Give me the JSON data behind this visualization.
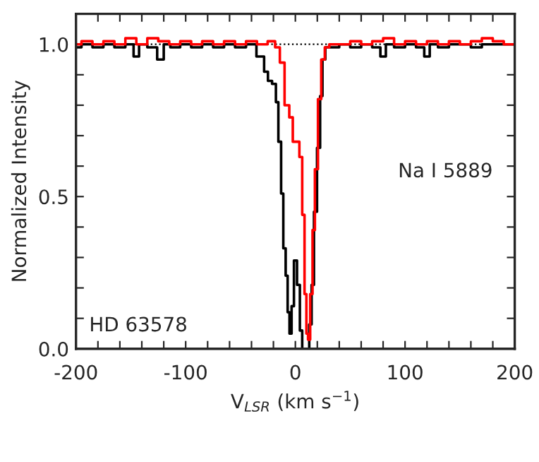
{
  "chart_data": {
    "type": "step",
    "xlabel": "V$_{LSR}$ (km s$^{−1}$)",
    "ylabel": "Normalized Intensity",
    "annotations": [
      "Na I 5889",
      "HD 63578"
    ],
    "series": [
      {
        "color": "#000000",
        "x": [
          -200,
          -190,
          -180,
          -170,
          -160,
          -150,
          -145,
          -140,
          -130,
          -122,
          -118,
          -110,
          -100,
          -90,
          -80,
          -70,
          -60,
          -50,
          -40,
          -31,
          -26,
          -24,
          -18.5,
          -17,
          -14,
          -12,
          -10,
          -7.7,
          -6.4,
          -4.3,
          -2.6,
          0,
          3,
          5.2,
          7.3,
          11.6,
          13.7,
          15.9,
          18,
          21.5,
          23.6,
          25.8,
          28.8,
          35,
          45,
          55,
          65,
          75,
          80,
          85,
          95,
          105,
          115,
          120,
          125,
          135,
          145,
          155,
          165,
          175,
          185,
          195,
          200
        ],
        "values": [
          0.99,
          1.0,
          0.99,
          1.0,
          0.99,
          1.0,
          0.96,
          1.0,
          0.99,
          0.95,
          1.0,
          0.99,
          1.0,
          0.99,
          1.0,
          0.99,
          1.0,
          0.99,
          1.0,
          0.96,
          0.91,
          0.88,
          0.87,
          0.81,
          0.68,
          0.51,
          0.33,
          0.24,
          0.12,
          0.05,
          0.14,
          0.29,
          0.21,
          0.06,
          0.0,
          0.0,
          0.08,
          0.21,
          0.45,
          0.66,
          0.83,
          0.95,
          0.99,
          0.99,
          1.0,
          0.99,
          1.0,
          0.99,
          0.96,
          1.0,
          0.99,
          1.0,
          0.99,
          0.96,
          1.0,
          0.99,
          1.0,
          1.0,
          0.99,
          1.0,
          1.0,
          1.0,
          1.0
        ]
      },
      {
        "color": "#ff0000",
        "x": [
          -200,
          -190,
          -180,
          -170,
          -160,
          -150,
          -140,
          -130,
          -120,
          -110,
          -100,
          -90,
          -80,
          -70,
          -60,
          -50,
          -40,
          -30,
          -20.6,
          -16.3,
          -12,
          -7.7,
          -3.4,
          -1.3,
          2.1,
          5.2,
          7.3,
          9.4,
          10.7,
          12.4,
          14.6,
          16.7,
          18.9,
          22.3,
          24.9,
          28.8,
          33,
          45,
          55,
          65,
          75,
          85,
          95,
          105,
          115,
          125,
          135,
          145,
          155,
          165,
          175,
          185,
          195,
          200
        ],
        "values": [
          1.0,
          1.01,
          1.0,
          1.01,
          1.0,
          1.02,
          1.0,
          1.02,
          1.01,
          1.0,
          1.01,
          1.0,
          1.01,
          1.0,
          1.01,
          1.0,
          1.01,
          1.0,
          1.01,
          0.99,
          0.94,
          0.8,
          0.76,
          0.68,
          0.68,
          0.63,
          0.44,
          0.18,
          0.05,
          0.03,
          0.18,
          0.39,
          0.59,
          0.82,
          0.95,
          0.99,
          1.0,
          1.0,
          1.01,
          1.0,
          1.01,
          1.02,
          1.0,
          1.01,
          1.0,
          1.01,
          1.0,
          1.01,
          1.0,
          1.01,
          1.02,
          1.01,
          1.0,
          1.0
        ]
      }
    ],
    "ref_lines": [
      {
        "axis": "y",
        "value": 1.0,
        "color": "#000000",
        "line_style": "dotted"
      }
    ],
    "xlim": [
      -200,
      200
    ],
    "ylim": [
      0,
      1.1
    ],
    "xticks": [
      -200,
      {
        "value": -180,
        "label": null
      },
      {
        "value": -160,
        "label": null
      },
      {
        "value": -140,
        "label": null
      },
      {
        "value": -120,
        "label": null
      },
      -100,
      {
        "value": -80,
        "label": null
      },
      {
        "value": -60,
        "label": null
      },
      {
        "value": -40,
        "label": null
      },
      {
        "value": -20,
        "label": null
      },
      0,
      {
        "value": 20,
        "label": null
      },
      {
        "value": 40,
        "label": null
      },
      {
        "value": 60,
        "label": null
      },
      {
        "value": 80,
        "label": null
      },
      100,
      {
        "value": 120,
        "label": null
      },
      {
        "value": 140,
        "label": null
      },
      {
        "value": 160,
        "label": null
      },
      {
        "value": 180,
        "label": null
      },
      200
    ],
    "yticks": [
      {
        "value": 0,
        "label": "0.0"
      },
      {
        "value": 0.1,
        "label": null
      },
      {
        "value": 0.2,
        "label": null
      },
      {
        "value": 0.3,
        "label": null
      },
      {
        "value": 0.4,
        "label": null
      },
      0.5,
      {
        "value": 0.6,
        "label": null
      },
      {
        "value": 0.7,
        "label": null
      },
      {
        "value": 0.8,
        "label": null
      },
      {
        "value": 0.9,
        "label": null
      },
      {
        "value": 1.0,
        "label": "1.0"
      }
    ]
  }
}
